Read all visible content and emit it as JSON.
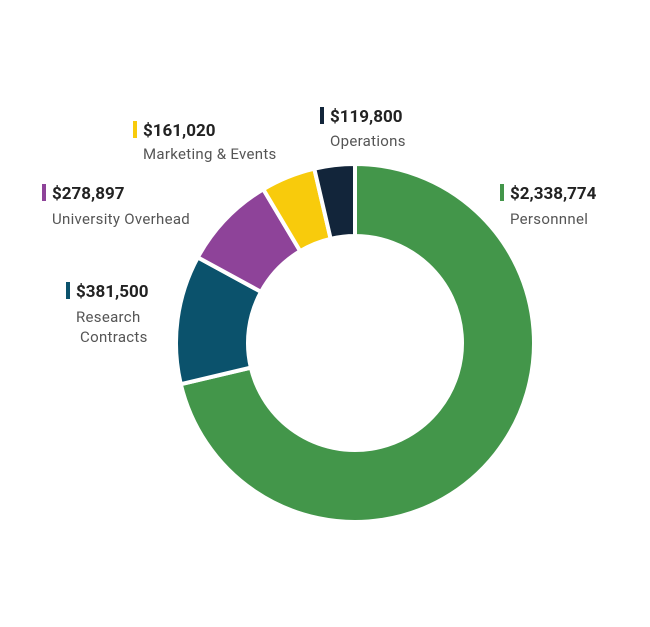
{
  "chart_data": {
    "type": "pie",
    "donut": true,
    "categories": [
      "Personnnel",
      "Research Contracts",
      "University Overhead",
      "Marketing & Events",
      "Operations"
    ],
    "values": [
      2338774,
      381500,
      278897,
      161020,
      119800
    ],
    "value_labels": [
      "$2,338,774",
      "$381,500",
      "$278,897",
      "$161,020",
      "$119,800"
    ],
    "colors": [
      "#43964a",
      "#0b526c",
      "#8e4399",
      "#f8cb0c",
      "#12253a"
    ]
  }
}
